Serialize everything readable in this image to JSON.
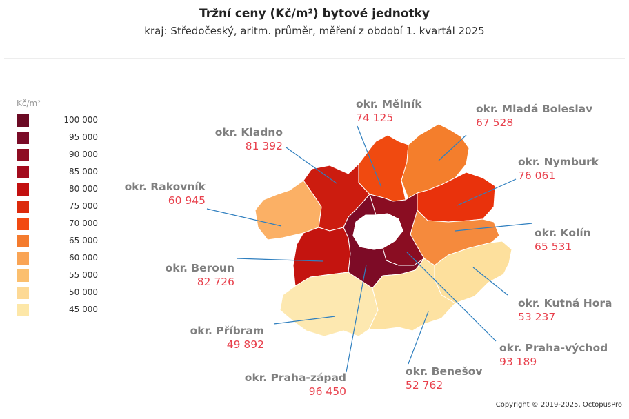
{
  "title": "Tržní ceny  (Kč/m²) bytové jednotky",
  "subtitle": "kraj: Středočeský, aritm. průměr, měření z období 1. kvartál 2025",
  "legend": {
    "unit": "Kč/m²",
    "items": [
      {
        "label": "100 000",
        "color": "#6b0a24"
      },
      {
        "label": "95 000",
        "color": "#7a0b27"
      },
      {
        "label": "90 000",
        "color": "#8e0c22"
      },
      {
        "label": "85 000",
        "color": "#a30b1d"
      },
      {
        "label": "80 000",
        "color": "#c21010"
      },
      {
        "label": "75 000",
        "color": "#dc2a0c"
      },
      {
        "label": "70 000",
        "color": "#f24a12"
      },
      {
        "label": "65 000",
        "color": "#f47b2e"
      },
      {
        "label": "60 000",
        "color": "#f9a455"
      },
      {
        "label": "55 000",
        "color": "#fbbf6e"
      },
      {
        "label": "50 000",
        "color": "#fdd995"
      },
      {
        "label": "45 000",
        "color": "#fde7a8"
      }
    ]
  },
  "districts": [
    {
      "name": "okr. Mělník",
      "value": "74 125",
      "color": "#f04a10"
    },
    {
      "name": "okr. Mladá Boleslav",
      "value": "67 528",
      "color": "#f47e2c"
    },
    {
      "name": "okr. Kladno",
      "value": "81 392",
      "color": "#cc1c0f"
    },
    {
      "name": "okr. Nymburk",
      "value": "76 061",
      "color": "#e9320c"
    },
    {
      "name": "okr. Rakovník",
      "value": "60 945",
      "color": "#fbb065"
    },
    {
      "name": "okr. Kolín",
      "value": "65 531",
      "color": "#f58a3d"
    },
    {
      "name": "okr. Beroun",
      "value": "82 726",
      "color": "#c4140f"
    },
    {
      "name": "okr. Kutná Hora",
      "value": "53 237",
      "color": "#fde09d"
    },
    {
      "name": "okr. Příbram",
      "value": "49 892",
      "color": "#fde8b0"
    },
    {
      "name": "okr. Praha-východ",
      "value": "93 189",
      "color": "#8a0d22"
    },
    {
      "name": "okr. Praha-západ",
      "value": "96 450",
      "color": "#7d0b26"
    },
    {
      "name": "okr. Benešov",
      "value": "52 762",
      "color": "#fde2a2"
    }
  ],
  "copyright": "Copyright © 2019-2025, OctopusPro"
}
